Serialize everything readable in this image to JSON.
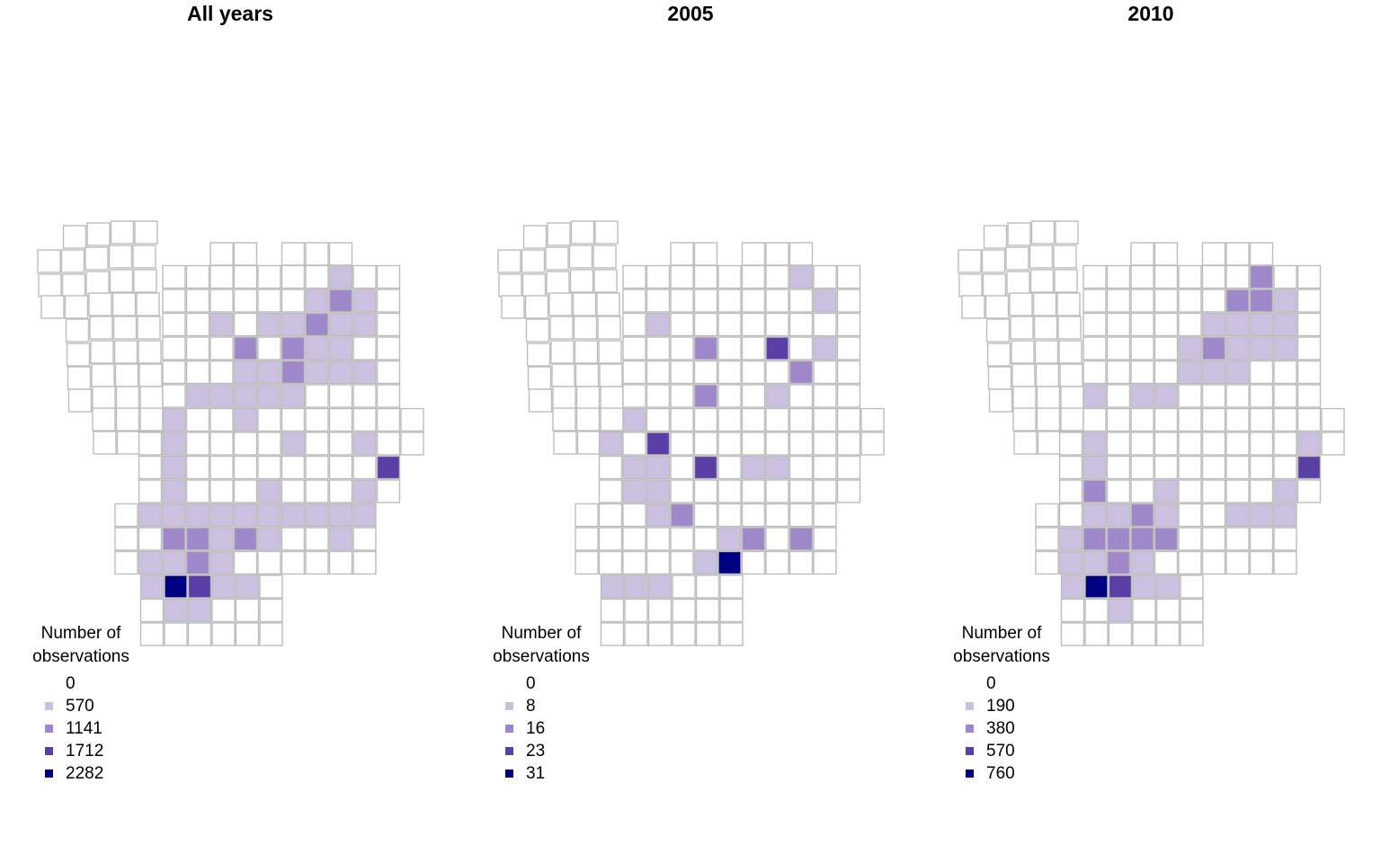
{
  "palette": [
    "#ffffff",
    "#cbc0e0",
    "#9f88c9",
    "#5b3ea5",
    "#000080"
  ],
  "cell_stroke": "#bdbdbd",
  "panels": [
    {
      "title": "All years",
      "legend": {
        "title_line1": "Number of",
        "title_line2": "observations",
        "labels": [
          "0",
          "570",
          "1141",
          "1712",
          "2282"
        ]
      }
    },
    {
      "title": "2005",
      "legend": {
        "title_line1": "Number of",
        "title_line2": "observations",
        "labels": [
          "0",
          "8",
          "16",
          "23",
          "31"
        ]
      }
    },
    {
      "title": "2010",
      "legend": {
        "title_line1": "Number of",
        "title_line2": "observations",
        "labels": [
          "0",
          "190",
          "380",
          "570",
          "760"
        ]
      }
    }
  ]
}
